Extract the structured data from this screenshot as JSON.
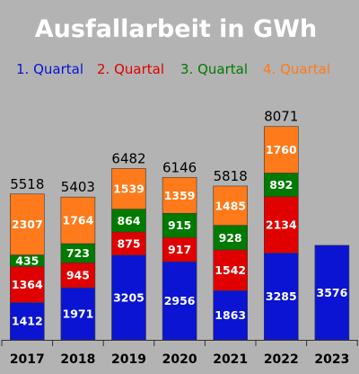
{
  "chart_data": {
    "type": "bar",
    "stacked": true,
    "title": "Ausfallarbeit in GWh",
    "categories": [
      "2017",
      "2018",
      "2019",
      "2020",
      "2021",
      "2022",
      "2023"
    ],
    "series": [
      {
        "name": "1. Quartal",
        "color": "#0a14d2",
        "values": [
          1412,
          1971,
          3205,
          2956,
          1863,
          3285,
          3576
        ]
      },
      {
        "name": "2. Quartal",
        "color": "#e00000",
        "values": [
          1364,
          945,
          875,
          917,
          1542,
          2134,
          null
        ]
      },
      {
        "name": "3. Quartal",
        "color": "#007a00",
        "values": [
          435,
          723,
          864,
          915,
          928,
          892,
          null
        ]
      },
      {
        "name": "4. Quartal",
        "color": "#ff7a1a",
        "values": [
          2307,
          1764,
          1539,
          1359,
          1485,
          1760,
          null
        ]
      }
    ],
    "totals": [
      5518,
      5403,
      6482,
      6146,
      5818,
      8071,
      null
    ],
    "ylim": [
      0,
      9000
    ],
    "grid": false,
    "legend": "top"
  }
}
